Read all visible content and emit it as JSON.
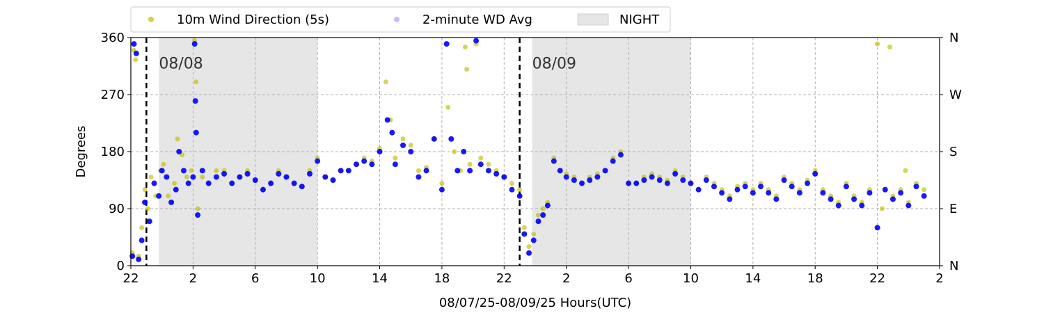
{
  "chart_data": {
    "type": "scatter",
    "xlabel": "08/07/25-08/09/25  Hours(UTC)",
    "ylabel": "Degrees",
    "x_range_hours": [
      0,
      52
    ],
    "x_tick_labels": [
      "22",
      "2",
      "6",
      "10",
      "14",
      "18",
      "22",
      "2",
      "6",
      "10",
      "14",
      "18",
      "22",
      "2"
    ],
    "y_range": [
      0,
      360
    ],
    "y_ticks": [
      0,
      90,
      180,
      270,
      360
    ],
    "y_right_tick_labels": [
      "N",
      "E",
      "S",
      "W",
      "N"
    ],
    "grid": true,
    "legend_placement": "top-left, above plot",
    "legend": [
      {
        "label": "10m Wind Direction (5s)",
        "marker": "dot",
        "color": "#bfbf00"
      },
      {
        "label": "2-minute WD Avg",
        "marker": "dot",
        "color": "#0000ff"
      },
      {
        "label": "NIGHT",
        "marker": "box",
        "color": "#e6e6e6"
      }
    ],
    "night_periods_hours": [
      [
        1.8,
        12.0
      ],
      [
        25.8,
        36.0
      ]
    ],
    "day_markers": [
      {
        "x_hour": 1.0,
        "label": "08/08"
      },
      {
        "x_hour": 25.0,
        "label": "08/09"
      }
    ],
    "series": [
      {
        "name": "10m Wind Direction (5s)",
        "color": "#bfbf00",
        "points": [
          [
            0.1,
            20
          ],
          [
            0.2,
            340
          ],
          [
            0.3,
            325
          ],
          [
            0.5,
            15
          ],
          [
            0.7,
            60
          ],
          [
            0.9,
            120
          ],
          [
            1.1,
            90
          ],
          [
            1.3,
            140
          ],
          [
            1.6,
            110
          ],
          [
            1.9,
            150
          ],
          [
            2.1,
            160
          ],
          [
            2.4,
            110
          ],
          [
            2.8,
            130
          ],
          [
            3.0,
            200
          ],
          [
            3.3,
            175
          ],
          [
            3.6,
            140
          ],
          [
            3.9,
            150
          ],
          [
            4.1,
            355
          ],
          [
            4.2,
            290
          ],
          [
            4.3,
            90
          ],
          [
            4.6,
            140
          ],
          [
            5.0,
            130
          ],
          [
            5.5,
            150
          ],
          [
            6.0,
            150
          ],
          [
            6.5,
            130
          ],
          [
            7.0,
            140
          ],
          [
            7.5,
            150
          ],
          [
            8.0,
            135
          ],
          [
            8.5,
            120
          ],
          [
            9.0,
            130
          ],
          [
            9.5,
            150
          ],
          [
            10.0,
            140
          ],
          [
            10.5,
            130
          ],
          [
            11.0,
            125
          ],
          [
            11.5,
            150
          ],
          [
            12.0,
            170
          ],
          [
            12.5,
            140
          ],
          [
            13.0,
            135
          ],
          [
            13.5,
            150
          ],
          [
            14.0,
            150
          ],
          [
            14.5,
            160
          ],
          [
            15.0,
            170
          ],
          [
            15.5,
            165
          ],
          [
            16.0,
            185
          ],
          [
            16.4,
            290
          ],
          [
            16.7,
            230
          ],
          [
            17.0,
            170
          ],
          [
            17.5,
            200
          ],
          [
            18.0,
            190
          ],
          [
            18.5,
            150
          ],
          [
            19.0,
            155
          ],
          [
            19.5,
            200
          ],
          [
            20.0,
            130
          ],
          [
            20.4,
            250
          ],
          [
            20.8,
            180
          ],
          [
            21.2,
            150
          ],
          [
            21.5,
            345
          ],
          [
            21.6,
            310
          ],
          [
            21.8,
            160
          ],
          [
            22.2,
            350
          ],
          [
            22.5,
            170
          ],
          [
            23.0,
            160
          ],
          [
            23.5,
            150
          ],
          [
            24.0,
            140
          ],
          [
            24.5,
            130
          ],
          [
            25.0,
            120
          ],
          [
            25.3,
            60
          ],
          [
            25.6,
            30
          ],
          [
            25.9,
            50
          ],
          [
            26.2,
            80
          ],
          [
            26.5,
            90
          ],
          [
            26.8,
            100
          ],
          [
            27.2,
            170
          ],
          [
            27.6,
            150
          ],
          [
            28.0,
            145
          ],
          [
            28.5,
            140
          ],
          [
            29.0,
            130
          ],
          [
            29.5,
            140
          ],
          [
            30.0,
            145
          ],
          [
            30.5,
            150
          ],
          [
            31.0,
            170
          ],
          [
            31.5,
            180
          ],
          [
            32.0,
            130
          ],
          [
            32.5,
            130
          ],
          [
            33.0,
            140
          ],
          [
            33.5,
            145
          ],
          [
            34.0,
            140
          ],
          [
            34.5,
            135
          ],
          [
            35.0,
            150
          ],
          [
            35.5,
            140
          ],
          [
            36.0,
            130
          ],
          [
            36.5,
            120
          ],
          [
            37.0,
            140
          ],
          [
            37.5,
            130
          ],
          [
            38.0,
            120
          ],
          [
            38.5,
            110
          ],
          [
            39.0,
            125
          ],
          [
            39.5,
            130
          ],
          [
            40.0,
            120
          ],
          [
            40.5,
            130
          ],
          [
            41.0,
            120
          ],
          [
            41.5,
            110
          ],
          [
            42.0,
            140
          ],
          [
            42.5,
            130
          ],
          [
            43.0,
            120
          ],
          [
            43.5,
            135
          ],
          [
            44.0,
            150
          ],
          [
            44.5,
            120
          ],
          [
            45.0,
            110
          ],
          [
            45.5,
            100
          ],
          [
            46.0,
            130
          ],
          [
            46.5,
            110
          ],
          [
            47.0,
            100
          ],
          [
            47.5,
            120
          ],
          [
            48.0,
            350
          ],
          [
            48.3,
            90
          ],
          [
            48.8,
            345
          ],
          [
            49.0,
            110
          ],
          [
            49.5,
            120
          ],
          [
            49.8,
            150
          ],
          [
            50.0,
            100
          ],
          [
            50.5,
            130
          ],
          [
            51.0,
            120
          ]
        ]
      },
      {
        "name": "2-minute WD Avg",
        "color": "#0000ff",
        "points": [
          [
            0.1,
            15
          ],
          [
            0.2,
            350
          ],
          [
            0.35,
            335
          ],
          [
            0.5,
            10
          ],
          [
            0.7,
            40
          ],
          [
            0.9,
            100
          ],
          [
            1.2,
            70
          ],
          [
            1.5,
            130
          ],
          [
            1.8,
            110
          ],
          [
            2.0,
            150
          ],
          [
            2.3,
            140
          ],
          [
            2.6,
            100
          ],
          [
            2.9,
            120
          ],
          [
            3.1,
            180
          ],
          [
            3.4,
            150
          ],
          [
            3.7,
            130
          ],
          [
            4.0,
            140
          ],
          [
            4.1,
            350
          ],
          [
            4.15,
            260
          ],
          [
            4.2,
            210
          ],
          [
            4.3,
            80
          ],
          [
            4.6,
            150
          ],
          [
            5.0,
            130
          ],
          [
            5.5,
            140
          ],
          [
            6.0,
            145
          ],
          [
            6.5,
            130
          ],
          [
            7.0,
            140
          ],
          [
            7.5,
            145
          ],
          [
            8.0,
            135
          ],
          [
            8.5,
            120
          ],
          [
            9.0,
            130
          ],
          [
            9.5,
            145
          ],
          [
            10.0,
            140
          ],
          [
            10.5,
            130
          ],
          [
            11.0,
            125
          ],
          [
            11.5,
            145
          ],
          [
            12.0,
            165
          ],
          [
            12.5,
            140
          ],
          [
            13.0,
            135
          ],
          [
            13.5,
            150
          ],
          [
            14.0,
            150
          ],
          [
            14.5,
            160
          ],
          [
            15.0,
            165
          ],
          [
            15.5,
            160
          ],
          [
            16.0,
            180
          ],
          [
            16.5,
            230
          ],
          [
            16.8,
            210
          ],
          [
            17.0,
            160
          ],
          [
            17.5,
            190
          ],
          [
            18.0,
            180
          ],
          [
            18.5,
            140
          ],
          [
            19.0,
            150
          ],
          [
            19.5,
            200
          ],
          [
            20.0,
            120
          ],
          [
            20.3,
            350
          ],
          [
            20.6,
            200
          ],
          [
            21.0,
            150
          ],
          [
            21.4,
            180
          ],
          [
            21.8,
            150
          ],
          [
            22.2,
            355
          ],
          [
            22.5,
            160
          ],
          [
            23.0,
            150
          ],
          [
            23.5,
            145
          ],
          [
            24.0,
            140
          ],
          [
            24.5,
            120
          ],
          [
            25.0,
            110
          ],
          [
            25.3,
            50
          ],
          [
            25.6,
            20
          ],
          [
            25.9,
            40
          ],
          [
            26.2,
            70
          ],
          [
            26.5,
            80
          ],
          [
            26.8,
            95
          ],
          [
            27.2,
            165
          ],
          [
            27.6,
            150
          ],
          [
            28.0,
            140
          ],
          [
            28.5,
            135
          ],
          [
            29.0,
            130
          ],
          [
            29.5,
            135
          ],
          [
            30.0,
            140
          ],
          [
            30.5,
            150
          ],
          [
            31.0,
            165
          ],
          [
            31.5,
            175
          ],
          [
            32.0,
            130
          ],
          [
            32.5,
            130
          ],
          [
            33.0,
            135
          ],
          [
            33.5,
            140
          ],
          [
            34.0,
            135
          ],
          [
            34.5,
            130
          ],
          [
            35.0,
            145
          ],
          [
            35.5,
            135
          ],
          [
            36.0,
            130
          ],
          [
            36.5,
            120
          ],
          [
            37.0,
            135
          ],
          [
            37.5,
            125
          ],
          [
            38.0,
            115
          ],
          [
            38.5,
            105
          ],
          [
            39.0,
            120
          ],
          [
            39.5,
            125
          ],
          [
            40.0,
            115
          ],
          [
            40.5,
            125
          ],
          [
            41.0,
            115
          ],
          [
            41.5,
            105
          ],
          [
            42.0,
            135
          ],
          [
            42.5,
            125
          ],
          [
            43.0,
            115
          ],
          [
            43.5,
            130
          ],
          [
            44.0,
            145
          ],
          [
            44.5,
            115
          ],
          [
            45.0,
            105
          ],
          [
            45.5,
            95
          ],
          [
            46.0,
            125
          ],
          [
            46.5,
            105
          ],
          [
            47.0,
            95
          ],
          [
            47.5,
            115
          ],
          [
            48.0,
            60
          ],
          [
            48.5,
            120
          ],
          [
            49.0,
            105
          ],
          [
            49.5,
            115
          ],
          [
            50.0,
            95
          ],
          [
            50.5,
            125
          ],
          [
            51.0,
            110
          ]
        ]
      }
    ]
  }
}
